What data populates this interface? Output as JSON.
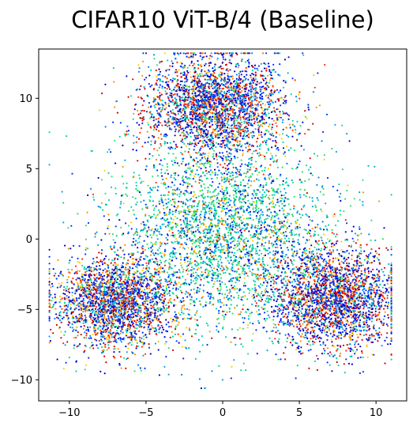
{
  "chart_data": {
    "type": "scatter",
    "title": "CIFAR10 ViT-B/4 (Baseline)",
    "xlabel": "",
    "ylabel": "",
    "xlim": [
      -12,
      12
    ],
    "ylim": [
      -11.5,
      13.5
    ],
    "x_ticks": [
      -10,
      -5,
      0,
      5,
      10
    ],
    "y_ticks": [
      -10,
      -5,
      0,
      5,
      10
    ],
    "x_tick_labels": [
      "−10",
      "−5",
      "0",
      "5",
      "10"
    ],
    "y_tick_labels": [
      "−10",
      "−5",
      "0",
      "5",
      "10"
    ],
    "grid": false,
    "legend": "none",
    "colors": [
      "#0000d0",
      "#0030ff",
      "#0080ff",
      "#00a8e0",
      "#00d8a0",
      "#30e070",
      "#ffd000",
      "#ff9000",
      "#ff3000",
      "#d00000"
    ],
    "series": [
      {
        "cluster_center": [
          -0.5,
          9.5
        ],
        "spread": [
          2.3,
          1.8
        ],
        "count": 2600,
        "color_weights": [
          3,
          3,
          1,
          1,
          1,
          0.6,
          0.5,
          1,
          2,
          2
        ]
      },
      {
        "cluster_center": [
          -7.0,
          -4.5
        ],
        "spread": [
          1.9,
          1.6
        ],
        "count": 2300,
        "color_weights": [
          3,
          3,
          1,
          1,
          1,
          0.5,
          1,
          1.5,
          1.5,
          2
        ]
      },
      {
        "cluster_center": [
          7.3,
          -4.2
        ],
        "spread": [
          2.0,
          1.8
        ],
        "count": 2400,
        "color_weights": [
          3.5,
          3,
          1,
          0.8,
          0.8,
          0.5,
          0.6,
          1.2,
          2,
          2.5
        ]
      },
      {
        "cluster_center": [
          0.0,
          0.5
        ],
        "spread": [
          3.6,
          3.4
        ],
        "count": 3200,
        "color_weights": [
          1,
          1,
          1.2,
          2.5,
          3.5,
          3,
          1,
          0.6,
          0.3,
          0.2
        ]
      }
    ]
  }
}
